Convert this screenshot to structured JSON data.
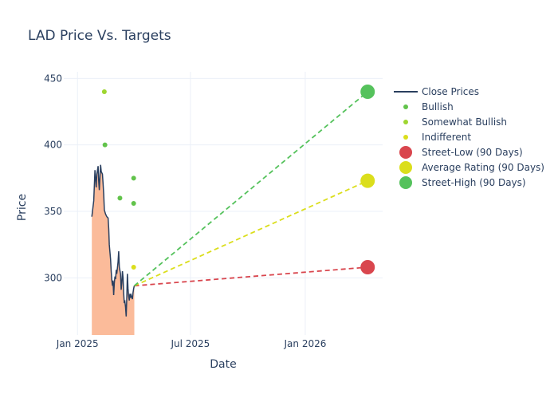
{
  "chart_data": {
    "type": "line",
    "title": "LAD Price Vs. Targets",
    "xlabel": "Date",
    "ylabel": "Price",
    "xlim": [
      "2024-12-10",
      "2026-05-05"
    ],
    "ylim": [
      257,
      455
    ],
    "x_ticks": [
      {
        "label": "Jan 2025",
        "date": "2025-01-01"
      },
      {
        "label": "Jul 2025",
        "date": "2025-07-01"
      },
      {
        "label": "Jan 2026",
        "date": "2026-01-01"
      }
    ],
    "y_ticks": [
      300,
      350,
      400,
      450
    ],
    "grid": true,
    "legend_position": "right",
    "close_prices": {
      "name": "Close Prices",
      "line_color": "#2a3f5f",
      "fill_color": "#fbbb9a",
      "points": [
        [
          "2025-01-24",
          346
        ],
        [
          "2025-01-25",
          350
        ],
        [
          "2025-01-27",
          358
        ],
        [
          "2025-01-28",
          370
        ],
        [
          "2025-01-29",
          381
        ],
        [
          "2025-01-30",
          375
        ],
        [
          "2025-01-31",
          368
        ],
        [
          "2025-02-01",
          378
        ],
        [
          "2025-02-03",
          384
        ],
        [
          "2025-02-04",
          373
        ],
        [
          "2025-02-05",
          366
        ],
        [
          "2025-02-06",
          376
        ],
        [
          "2025-02-07",
          385
        ],
        [
          "2025-02-08",
          380
        ],
        [
          "2025-02-10",
          378
        ],
        [
          "2025-02-11",
          371
        ],
        [
          "2025-02-12",
          363
        ],
        [
          "2025-02-13",
          351
        ],
        [
          "2025-02-15",
          348
        ],
        [
          "2025-02-17",
          346
        ],
        [
          "2025-02-19",
          345
        ],
        [
          "2025-02-20",
          337
        ],
        [
          "2025-02-21",
          325
        ],
        [
          "2025-02-23",
          314
        ],
        [
          "2025-02-24",
          305
        ],
        [
          "2025-02-25",
          298
        ],
        [
          "2025-02-26",
          294
        ],
        [
          "2025-02-27",
          298
        ],
        [
          "2025-02-28",
          287
        ],
        [
          "2025-03-01",
          296
        ],
        [
          "2025-03-02",
          301
        ],
        [
          "2025-03-03",
          299
        ],
        [
          "2025-03-04",
          306
        ],
        [
          "2025-03-05",
          303
        ],
        [
          "2025-03-07",
          312
        ],
        [
          "2025-03-08",
          320
        ],
        [
          "2025-03-09",
          308
        ],
        [
          "2025-03-11",
          303
        ],
        [
          "2025-03-12",
          291
        ],
        [
          "2025-03-13",
          296
        ],
        [
          "2025-03-14",
          305
        ],
        [
          "2025-03-15",
          300
        ],
        [
          "2025-03-16",
          289
        ],
        [
          "2025-03-17",
          281
        ],
        [
          "2025-03-18",
          282
        ],
        [
          "2025-03-19",
          278
        ],
        [
          "2025-03-20",
          271
        ],
        [
          "2025-03-21",
          286
        ],
        [
          "2025-03-22",
          303
        ],
        [
          "2025-03-23",
          292
        ],
        [
          "2025-03-24",
          286
        ],
        [
          "2025-03-25",
          283
        ],
        [
          "2025-03-26",
          288
        ],
        [
          "2025-03-27",
          285
        ],
        [
          "2025-03-28",
          287
        ],
        [
          "2025-03-30",
          284
        ],
        [
          "2025-03-31",
          289
        ],
        [
          "2025-04-01",
          292
        ],
        [
          "2025-04-02",
          294
        ]
      ]
    },
    "analyst_ratings": [
      {
        "name": "Bullish",
        "color": "#62c34b",
        "points": [
          [
            "2025-02-14",
            400
          ],
          [
            "2025-03-10",
            360
          ],
          [
            "2025-04-01",
            375
          ],
          [
            "2025-04-01",
            356
          ]
        ]
      },
      {
        "name": "Somewhat Bullish",
        "color": "#9ed630",
        "points": [
          [
            "2025-02-13",
            440
          ]
        ]
      },
      {
        "name": "Indifferent",
        "color": "#dbde1c",
        "points": [
          [
            "2025-04-01",
            308
          ]
        ]
      }
    ],
    "targets": [
      {
        "name": "Street-Low (90 Days)",
        "color": "#d9464e",
        "start": [
          "2025-04-02",
          294
        ],
        "end": [
          "2026-04-11",
          308
        ]
      },
      {
        "name": "Average Rating (90 Days)",
        "color": "#dbde1c",
        "start": [
          "2025-04-02",
          294
        ],
        "end": [
          "2026-04-11",
          373
        ]
      },
      {
        "name": "Street-High (90 Days)",
        "color": "#55c25c",
        "start": [
          "2025-04-02",
          294
        ],
        "end": [
          "2026-04-11",
          440
        ]
      }
    ]
  }
}
